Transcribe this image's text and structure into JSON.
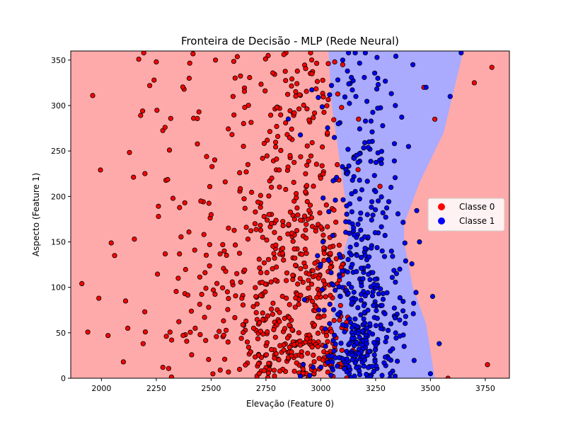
{
  "chart_data": {
    "type": "scatter",
    "title": "Fronteira de Decisão - MLP (Rede Neural)",
    "xlabel": "Elevação (Feature 0)",
    "ylabel": "Aspecto (Feature 1)",
    "xlim": [
      1860,
      3860
    ],
    "ylim": [
      0,
      360
    ],
    "xticks": [
      2000,
      2250,
      2500,
      2750,
      3000,
      3250,
      3500,
      3750
    ],
    "yticks": [
      0,
      50,
      100,
      150,
      200,
      250,
      300,
      350
    ],
    "grid": false,
    "legend_position": "center-right",
    "background_region_colors": {
      "class_0": "#ffaaaa",
      "class_1": "#aaaaff"
    },
    "decision_region_class_1": {
      "description_points": [
        [
          3040,
          360
        ],
        [
          3650,
          360
        ],
        [
          3540,
          215
        ],
        [
          3530,
          170
        ],
        [
          3370,
          100
        ],
        [
          3520,
          0
        ],
        [
          3060,
          0
        ],
        [
          3030,
          130
        ],
        [
          3040,
          200
        ],
        [
          3080,
          260
        ],
        [
          3040,
          360
        ]
      ],
      "left_boundary": [
        [
          3035,
          360
        ],
        [
          3050,
          300
        ],
        [
          3080,
          250
        ],
        [
          3110,
          200
        ],
        [
          3130,
          160
        ],
        [
          3080,
          120
        ],
        [
          3050,
          60
        ],
        [
          3060,
          0
        ]
      ],
      "right_boundary": [
        [
          3650,
          360
        ],
        [
          3560,
          270
        ],
        [
          3450,
          215
        ],
        [
          3380,
          170
        ],
        [
          3380,
          150
        ],
        [
          3420,
          100
        ],
        [
          3480,
          60
        ],
        [
          3520,
          0
        ]
      ]
    },
    "series": [
      {
        "name": "Classe 0",
        "color": "#ff0000",
        "count": 650,
        "x_range": [
          1950,
          3780
        ],
        "dense_range": [
          2600,
          3100
        ]
      },
      {
        "name": "Classe 1",
        "color": "#0000ff",
        "count": 420,
        "x_range": [
          3000,
          3600
        ],
        "dense_range": [
          3050,
          3330
        ]
      }
    ],
    "legend": [
      {
        "label": "Classe 0",
        "color": "#ff0000"
      },
      {
        "label": "Classe 1",
        "color": "#0000ff"
      }
    ],
    "sample_points_class_0": [
      [
        1960,
        311
      ],
      [
        2030,
        47
      ],
      [
        2060,
        135
      ],
      [
        2100,
        18
      ],
      [
        2110,
        85
      ],
      [
        2120,
        55
      ],
      [
        2150,
        153
      ],
      [
        2170,
        351
      ],
      [
        2190,
        38
      ],
      [
        2200,
        51
      ],
      [
        2220,
        322
      ],
      [
        2240,
        328
      ],
      [
        2250,
        348
      ],
      [
        2260,
        178
      ],
      [
        2280,
        12
      ],
      [
        2290,
        276
      ],
      [
        2310,
        251
      ],
      [
        2320,
        42
      ],
      [
        2350,
        110
      ],
      [
        2380,
        193
      ],
      [
        2400,
        330
      ],
      [
        2420,
        286
      ],
      [
        2450,
        48
      ],
      [
        2470,
        67
      ],
      [
        2500,
        180
      ],
      [
        2520,
        350
      ],
      [
        2560,
        140
      ],
      [
        2600,
        310
      ],
      [
        2640,
        88
      ],
      [
        2660,
        227
      ],
      [
        2700,
        170
      ],
      [
        2720,
        61
      ],
      [
        2760,
        355
      ],
      [
        2800,
        298
      ],
      [
        2830,
        130
      ],
      [
        2860,
        245
      ],
      [
        2900,
        50
      ],
      [
        2930,
        205
      ],
      [
        2960,
        335
      ],
      [
        2990,
        110
      ],
      [
        3010,
        20
      ],
      [
        3030,
        270
      ],
      [
        3060,
        185
      ],
      [
        3090,
        80
      ],
      [
        3100,
        345
      ],
      [
        3470,
        320
      ],
      [
        3520,
        285
      ],
      [
        3580,
        0
      ],
      [
        3700,
        325
      ],
      [
        3760,
        15
      ],
      [
        3780,
        342
      ]
    ],
    "sample_points_class_1": [
      [
        3010,
        150
      ],
      [
        3040,
        60
      ],
      [
        3060,
        30
      ],
      [
        3080,
        280
      ],
      [
        3100,
        350
      ],
      [
        3120,
        225
      ],
      [
        3140,
        100
      ],
      [
        3160,
        310
      ],
      [
        3180,
        175
      ],
      [
        3200,
        20
      ],
      [
        3220,
        260
      ],
      [
        3240,
        80
      ],
      [
        3260,
        330
      ],
      [
        3280,
        140
      ],
      [
        3300,
        45
      ],
      [
        3320,
        210
      ],
      [
        3340,
        300
      ],
      [
        3360,
        120
      ],
      [
        3380,
        35
      ],
      [
        3400,
        255
      ],
      [
        3420,
        345
      ],
      [
        3450,
        150
      ],
      [
        3480,
        320
      ],
      [
        3500,
        5
      ],
      [
        3510,
        90
      ],
      [
        3540,
        38
      ],
      [
        3590,
        310
      ],
      [
        3640,
        358
      ]
    ]
  }
}
